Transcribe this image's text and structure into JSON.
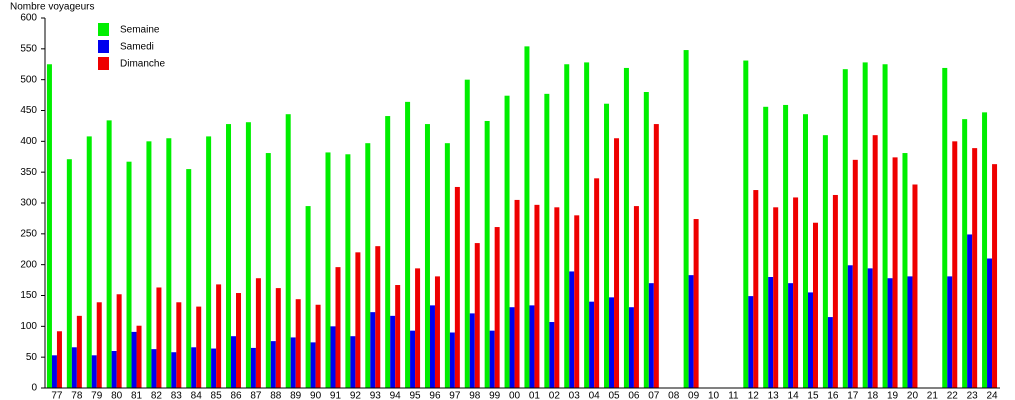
{
  "chart_data": {
    "type": "bar",
    "y_label": "Nombre voyageurs",
    "categories": [
      "77",
      "78",
      "79",
      "80",
      "81",
      "82",
      "83",
      "84",
      "85",
      "86",
      "87",
      "88",
      "89",
      "90",
      "91",
      "92",
      "93",
      "94",
      "95",
      "96",
      "97",
      "98",
      "99",
      "00",
      "01",
      "02",
      "03",
      "04",
      "05",
      "06",
      "07",
      "08",
      "09",
      "10",
      "11",
      "12",
      "13",
      "14",
      "15",
      "16",
      "17",
      "18",
      "19",
      "20",
      "21",
      "22",
      "23",
      "24"
    ],
    "series": [
      {
        "name": "Semaine",
        "color": "#00ee00",
        "values": [
          525,
          371,
          408,
          434,
          367,
          400,
          405,
          355,
          408,
          428,
          431,
          381,
          444,
          295,
          382,
          379,
          397,
          441,
          464,
          428,
          397,
          500,
          433,
          474,
          554,
          477,
          525,
          528,
          461,
          519,
          480,
          null,
          548,
          null,
          null,
          531,
          456,
          459,
          444,
          410,
          517,
          528,
          525,
          381,
          null,
          519,
          436,
          447
        ]
      },
      {
        "name": "Samedi",
        "color": "#0000ee",
        "values": [
          53,
          66,
          53,
          60,
          91,
          63,
          58,
          66,
          64,
          84,
          65,
          76,
          82,
          74,
          100,
          84,
          123,
          117,
          93,
          134,
          90,
          121,
          93,
          131,
          134,
          107,
          189,
          140,
          147,
          131,
          170,
          null,
          183,
          null,
          null,
          149,
          180,
          170,
          155,
          115,
          199,
          194,
          178,
          181,
          null,
          181,
          249,
          210
        ]
      },
      {
        "name": "Dimanche",
        "color": "#ee0000",
        "values": [
          92,
          117,
          139,
          152,
          101,
          163,
          139,
          132,
          168,
          154,
          178,
          162,
          144,
          135,
          196,
          220,
          230,
          167,
          194,
          181,
          326,
          235,
          261,
          305,
          297,
          293,
          280,
          340,
          405,
          295,
          428,
          null,
          274,
          null,
          null,
          321,
          293,
          309,
          268,
          313,
          370,
          410,
          374,
          330,
          null,
          400,
          389,
          363
        ]
      }
    ],
    "ylim": [
      0,
      600
    ],
    "yticks": [
      0,
      50,
      100,
      150,
      200,
      250,
      300,
      350,
      400,
      450,
      500,
      550,
      600
    ]
  }
}
